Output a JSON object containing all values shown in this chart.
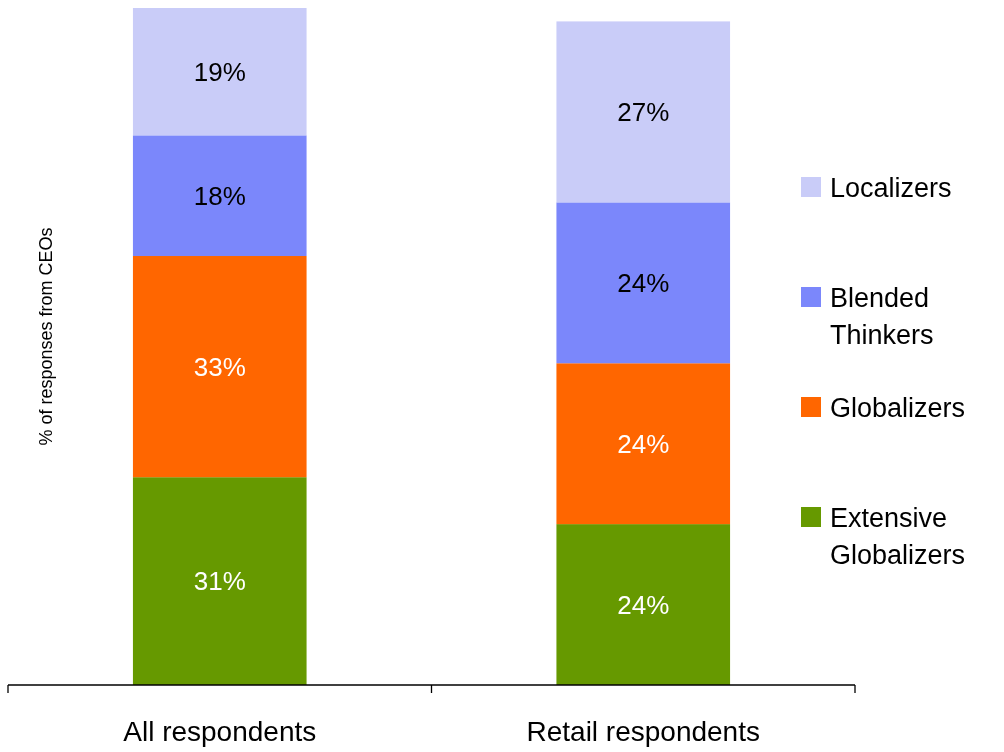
{
  "chart_data": {
    "type": "bar",
    "stacked": true,
    "ylabel": "% of responses from CEOs",
    "categories": [
      "All respondents",
      "Retail respondents"
    ],
    "ylim": [
      0,
      101
    ],
    "tick_labels": "x",
    "legend": "right",
    "series": [
      {
        "name": "Extensive Globalizers",
        "color": "#669900",
        "values": [
          31,
          24
        ],
        "value_labels": [
          "31%",
          "24%"
        ]
      },
      {
        "name": "Globalizers",
        "color": "#ff6600",
        "values": [
          33,
          24
        ],
        "value_labels": [
          "33%",
          "24%"
        ]
      },
      {
        "name": "Blended Thinkers",
        "color": "#7b87fb",
        "values": [
          18,
          24
        ],
        "value_labels": [
          "18%",
          "24%"
        ]
      },
      {
        "name": "Localizers",
        "color": "#c9ccf8",
        "values": [
          19,
          27
        ],
        "value_labels": [
          "19%",
          "27%"
        ]
      }
    ]
  }
}
